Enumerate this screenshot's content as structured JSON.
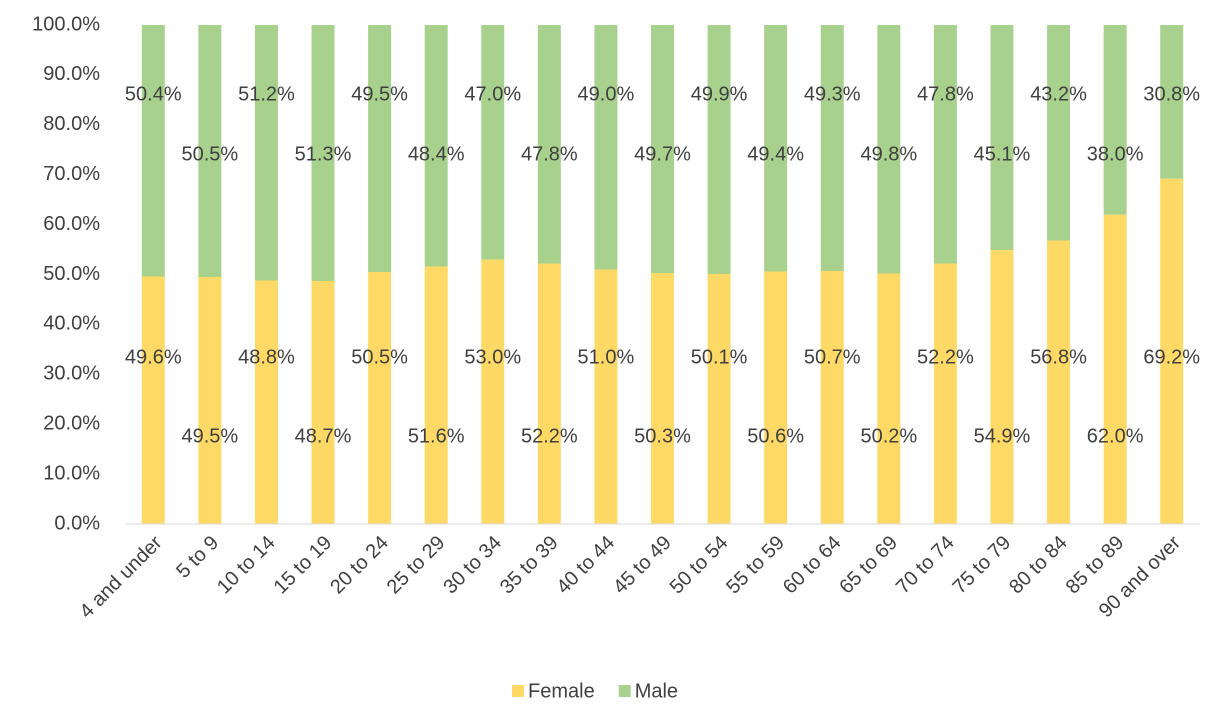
{
  "chart_data": {
    "type": "stacked_bar_100",
    "categories": [
      "4 and under",
      "5 to 9",
      "10 to 14",
      "15 to 19",
      "20 to 24",
      "25 to 29",
      "30 to 34",
      "35 to 39",
      "40 to 44",
      "45 to 49",
      "50 to 54",
      "55 to 59",
      "60 to 64",
      "65 to 69",
      "70 to 74",
      "75 to 79",
      "80 to 84",
      "85 to 89",
      "90 and over"
    ],
    "series": [
      {
        "name": "Female",
        "color": "#ffd966",
        "values": [
          49.6,
          49.5,
          48.8,
          48.7,
          50.5,
          51.6,
          53.0,
          52.2,
          51.0,
          50.3,
          50.1,
          50.6,
          50.7,
          50.2,
          52.2,
          54.9,
          56.8,
          62.0,
          69.2
        ],
        "value_labels": [
          "49.6%",
          "49.5%",
          "48.8%",
          "48.7%",
          "50.5%",
          "51.6%",
          "53.0%",
          "52.2%",
          "51.0%",
          "50.3%",
          "50.1%",
          "50.6%",
          "50.7%",
          "50.2%",
          "52.2%",
          "54.9%",
          "56.8%",
          "62.0%",
          "69.2%"
        ]
      },
      {
        "name": "Male",
        "color": "#a9d18e",
        "values": [
          50.4,
          50.5,
          51.2,
          51.3,
          49.5,
          48.4,
          47.0,
          47.8,
          49.0,
          49.7,
          49.9,
          49.4,
          49.3,
          49.8,
          47.8,
          45.1,
          43.2,
          38.0,
          30.8
        ],
        "value_labels": [
          "50.4%",
          "50.5%",
          "51.2%",
          "51.3%",
          "49.5%",
          "48.4%",
          "47.0%",
          "47.8%",
          "49.0%",
          "49.7%",
          "49.9%",
          "49.4%",
          "49.3%",
          "49.8%",
          "47.8%",
          "45.1%",
          "43.2%",
          "38.0%",
          "30.8%"
        ]
      }
    ],
    "ylim": [
      0,
      100
    ],
    "yticks": [
      {
        "value": 0,
        "label": "0.0%"
      },
      {
        "value": 10,
        "label": "10.0%"
      },
      {
        "value": 20,
        "label": "20.0%"
      },
      {
        "value": 30,
        "label": "30.0%"
      },
      {
        "value": 40,
        "label": "40.0%"
      },
      {
        "value": 50,
        "label": "50.0%"
      },
      {
        "value": 60,
        "label": "60.0%"
      },
      {
        "value": 70,
        "label": "70.0%"
      },
      {
        "value": 80,
        "label": "80.0%"
      },
      {
        "value": 90,
        "label": "90.0%"
      },
      {
        "value": 100,
        "label": "100.0%"
      }
    ],
    "grid": false,
    "legend": "bottom"
  }
}
